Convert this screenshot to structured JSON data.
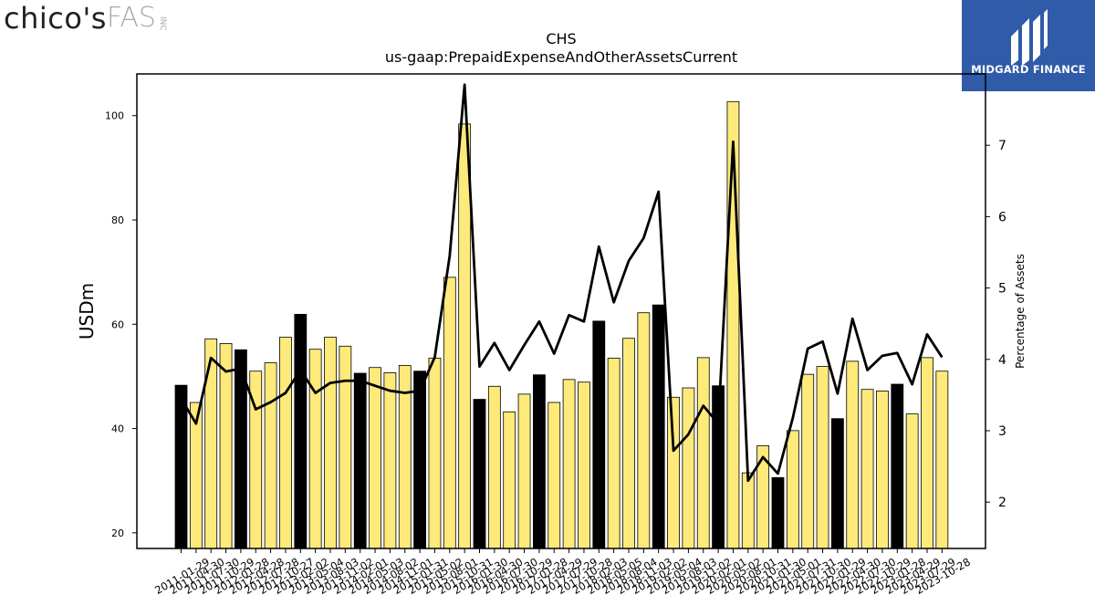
{
  "header": {
    "company_logo": {
      "name": "chico's",
      "suffix": "FAS",
      "inc": "INC"
    },
    "brand_logo": {
      "text": "MIDGARD FINANCE",
      "color": "#2f5ba9"
    }
  },
  "chart_data": {
    "type": "bar",
    "title": "CHS",
    "subtitle": "us-gaap:PrepaidExpenseAndOtherAssetsCurrent",
    "ylabel": "USDm",
    "y2label": "Percentage of Assets",
    "ylim": [
      17,
      108
    ],
    "y2lim": [
      1.35,
      8.0
    ],
    "yticks": [
      20,
      40,
      60,
      80,
      100
    ],
    "y2ticks": [
      2,
      3,
      4,
      5,
      6,
      7
    ],
    "grid": false,
    "colors": {
      "bar_q4": "#000000",
      "bar_other": "#fdea7a",
      "bar_edge": "#000000",
      "line": "#000000"
    },
    "categories": [
      "2011-01-29",
      "2011-04-30",
      "2011-07-30",
      "2011-10-29",
      "2012-01-28",
      "2012-04-28",
      "2012-07-28",
      "2012-10-27",
      "2013-02-02",
      "2013-05-04",
      "2013-08-03",
      "2013-11-02",
      "2014-02-01",
      "2014-05-03",
      "2014-08-02",
      "2014-11-01",
      "2015-01-31",
      "2015-05-02",
      "2015-08-01",
      "2015-10-31",
      "2016-01-30",
      "2016-04-30",
      "2016-07-30",
      "2016-10-29",
      "2017-01-28",
      "2017-04-29",
      "2017-07-29",
      "2017-10-28",
      "2018-02-03",
      "2018-05-05",
      "2018-08-04",
      "2018-11-03",
      "2019-02-02",
      "2019-05-04",
      "2019-08-03",
      "2019-11-02",
      "2020-02-01",
      "2020-05-02",
      "2020-08-01",
      "2020-10-31",
      "2021-01-30",
      "2021-05-01",
      "2021-07-31",
      "2021-10-30",
      "2022-01-29",
      "2022-04-30",
      "2022-07-30",
      "2022-10-29",
      "2023-01-28",
      "2023-04-29",
      "2023-07-29",
      "2023-10-28"
    ],
    "tick_labels": [
      "2011-01-29",
      "2011-04-30",
      "2011-07-30",
      "2011-10-29",
      "2012-01-28",
      "2012-04-28",
      "2012-07-28",
      "2012-10-27",
      "2013-02-02",
      "2013-05-04",
      "2013-08-03",
      "2013-11-02",
      "2014-02-01",
      "2014-05-03",
      "2014-08-02",
      "2014-11-01",
      "2015-01-31",
      "2015-05-02",
      "2015-08-01",
      "2015-10-31",
      "2016-01-30",
      "2016-04-30",
      "2016-07-30",
      "2016-10-29",
      "2017-01-28",
      "2017-04-29",
      "2017-07-29",
      "2017-10-28",
      "2018-02-03",
      "2018-05-05",
      "2018-08-04",
      "2018-11-03",
      "2019-02-02",
      "2019-05-04",
      "2019-08-03",
      "2019-11-02",
      "2020-02-01",
      "2020-05-02",
      "2020-08-01",
      "2020-10-31",
      "2021-01-30",
      "2021-05-01",
      "2021-07-31",
      "2021-10-30",
      "2022-01-29",
      "2022-04-30",
      "2022-07-30",
      "2022-10-29",
      "2023-01-28",
      "2023-04-29",
      "2023-07-29",
      "2023-10-28"
    ],
    "highlight": [
      true,
      false,
      false,
      false,
      true,
      false,
      false,
      false,
      true,
      false,
      false,
      false,
      true,
      false,
      false,
      false,
      true,
      false,
      false,
      false,
      true,
      false,
      false,
      false,
      true,
      false,
      false,
      false,
      true,
      false,
      false,
      false,
      true,
      false,
      false,
      false,
      true,
      false,
      false,
      false,
      true,
      false,
      false,
      false,
      true,
      false,
      false,
      false,
      true,
      false,
      false,
      false
    ],
    "series": [
      {
        "axis": "left",
        "kind": "bar",
        "values": [
          48.3,
          45.0,
          57.2,
          56.3,
          55.1,
          51.0,
          52.6,
          57.5,
          61.9,
          55.2,
          57.5,
          55.8,
          50.6,
          51.7,
          50.7,
          52.1,
          51.0,
          53.5,
          69.0,
          98.4,
          45.6,
          48.1,
          43.2,
          46.6,
          50.3,
          45.0,
          49.4,
          48.9,
          60.6,
          53.5,
          57.3,
          62.2,
          63.7,
          46.0,
          47.8,
          53.6,
          48.2,
          102.7,
          31.5,
          36.7,
          30.6,
          39.6,
          50.4,
          51.9,
          41.9,
          52.9,
          47.5,
          47.2,
          48.5,
          42.8,
          53.6,
          51.0
        ]
      },
      {
        "axis": "right",
        "kind": "line",
        "values": [
          3.45,
          3.1,
          4.02,
          3.83,
          3.87,
          3.3,
          3.4,
          3.53,
          3.85,
          3.53,
          3.67,
          3.7,
          3.7,
          3.63,
          3.56,
          3.53,
          3.56,
          4.03,
          5.45,
          7.85,
          3.9,
          4.23,
          3.85,
          4.2,
          4.53,
          4.08,
          4.62,
          4.53,
          5.58,
          4.8,
          5.38,
          5.7,
          6.35,
          2.72,
          2.95,
          3.35,
          3.1,
          7.05,
          2.3,
          2.63,
          2.4,
          3.18,
          4.15,
          4.25,
          3.52,
          4.57,
          3.85,
          4.05,
          4.09,
          3.65,
          4.35,
          4.03
        ]
      }
    ]
  }
}
